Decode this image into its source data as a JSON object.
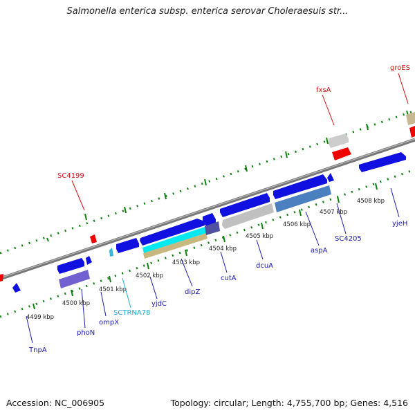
{
  "title": "Salmonella enterica subsp. enterica serovar Choleraesuis str...",
  "footer": {
    "accession": "Accession: NC_006905",
    "stats": "Topology: circular; Length: 4,755,700 bp; Genes: 4,516"
  },
  "colors": {
    "forward_gene": "#1010e0",
    "reverse_gene": "#1010e0",
    "rrna": "#ee0000",
    "pseudo": "#c8c8c8",
    "trna": "#30b8e0",
    "label_blue": "#1a1ab0",
    "label_red": "#d01010",
    "label_cyan": "#20a8d0",
    "tick_green": "#108010"
  },
  "kbp_labels": [
    "4499 kbp",
    "4500 kbp",
    "4501 kbp",
    "4502 kbp",
    "4503 kbp",
    "4504 kbp",
    "4505 kbp",
    "4506 kbp",
    "4507 kbp",
    "4508 kbp"
  ],
  "gene_labels": {
    "tnpA": "TnpA",
    "phoN": "phoN",
    "ompX": "ompX",
    "sctrna78": "SCTRNA78",
    "yjdC": "yjdC",
    "dipZ": "dipZ",
    "cutA": "cutA",
    "dcuA": "dcuA",
    "aspA": "aspA",
    "sc4205": "SC4205",
    "yjeH": "yjeH",
    "sc4199": "SC4199",
    "fxsA": "fxsA",
    "groES": "groES"
  }
}
